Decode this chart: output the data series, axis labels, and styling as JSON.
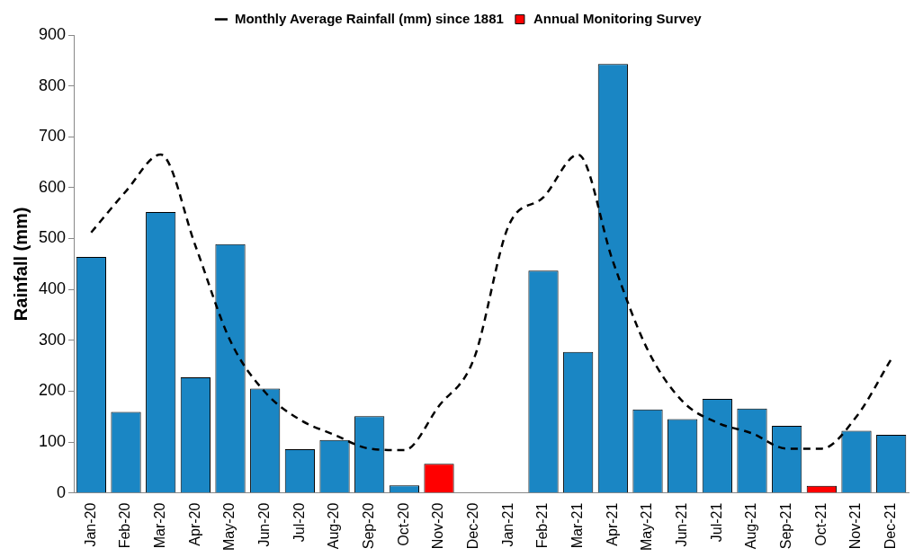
{
  "chart_data": {
    "type": "bar",
    "ylabel": "Rainfall (mm)",
    "categories": [
      "Jan-20",
      "Feb-20",
      "Mar-20",
      "Apr-20",
      "May-20",
      "Jun-20",
      "Jul-20",
      "Aug-20",
      "Sep-20",
      "Oct-20",
      "Nov-20",
      "Dec-20",
      "Jan-21",
      "Feb-21",
      "Mar-21",
      "Apr-21",
      "May-21",
      "Jun-21",
      "Jul-21",
      "Aug-21",
      "Sep-21",
      "Oct-21",
      "Nov-21",
      "Dec-21"
    ],
    "series": [
      {
        "color": "#1a86c4",
        "values": [
          464,
          159,
          552,
          227,
          489,
          205,
          86,
          104,
          151,
          15,
          null,
          null,
          null,
          437,
          277,
          843,
          164,
          145,
          185,
          166,
          132,
          null,
          122,
          114
        ]
      },
      {
        "name": "Annual Monitoring Survey",
        "color": "#ff0000",
        "values": [
          null,
          null,
          null,
          null,
          null,
          null,
          null,
          null,
          null,
          null,
          57,
          null,
          null,
          null,
          null,
          null,
          null,
          null,
          null,
          null,
          null,
          14,
          null,
          null
        ]
      },
      {
        "name": "Monthly Average Rainfall (mm) since 1881",
        "type": "line",
        "color": "#000000",
        "line_style": "dashed",
        "marker": "none",
        "values": [
          512,
          593,
          665,
          485,
          299,
          198,
          144,
          114,
          87,
          84,
          171,
          263,
          525,
          581,
          665,
          455,
          281,
          180,
          138,
          117,
          87,
          87,
          150,
          263
        ]
      }
    ],
    "stacked": true,
    "ylim": [
      0,
      900
    ],
    "yticks": [
      0,
      100,
      200,
      300,
      400,
      500,
      600,
      700,
      800,
      900
    ],
    "grid": false,
    "legend": "top"
  }
}
